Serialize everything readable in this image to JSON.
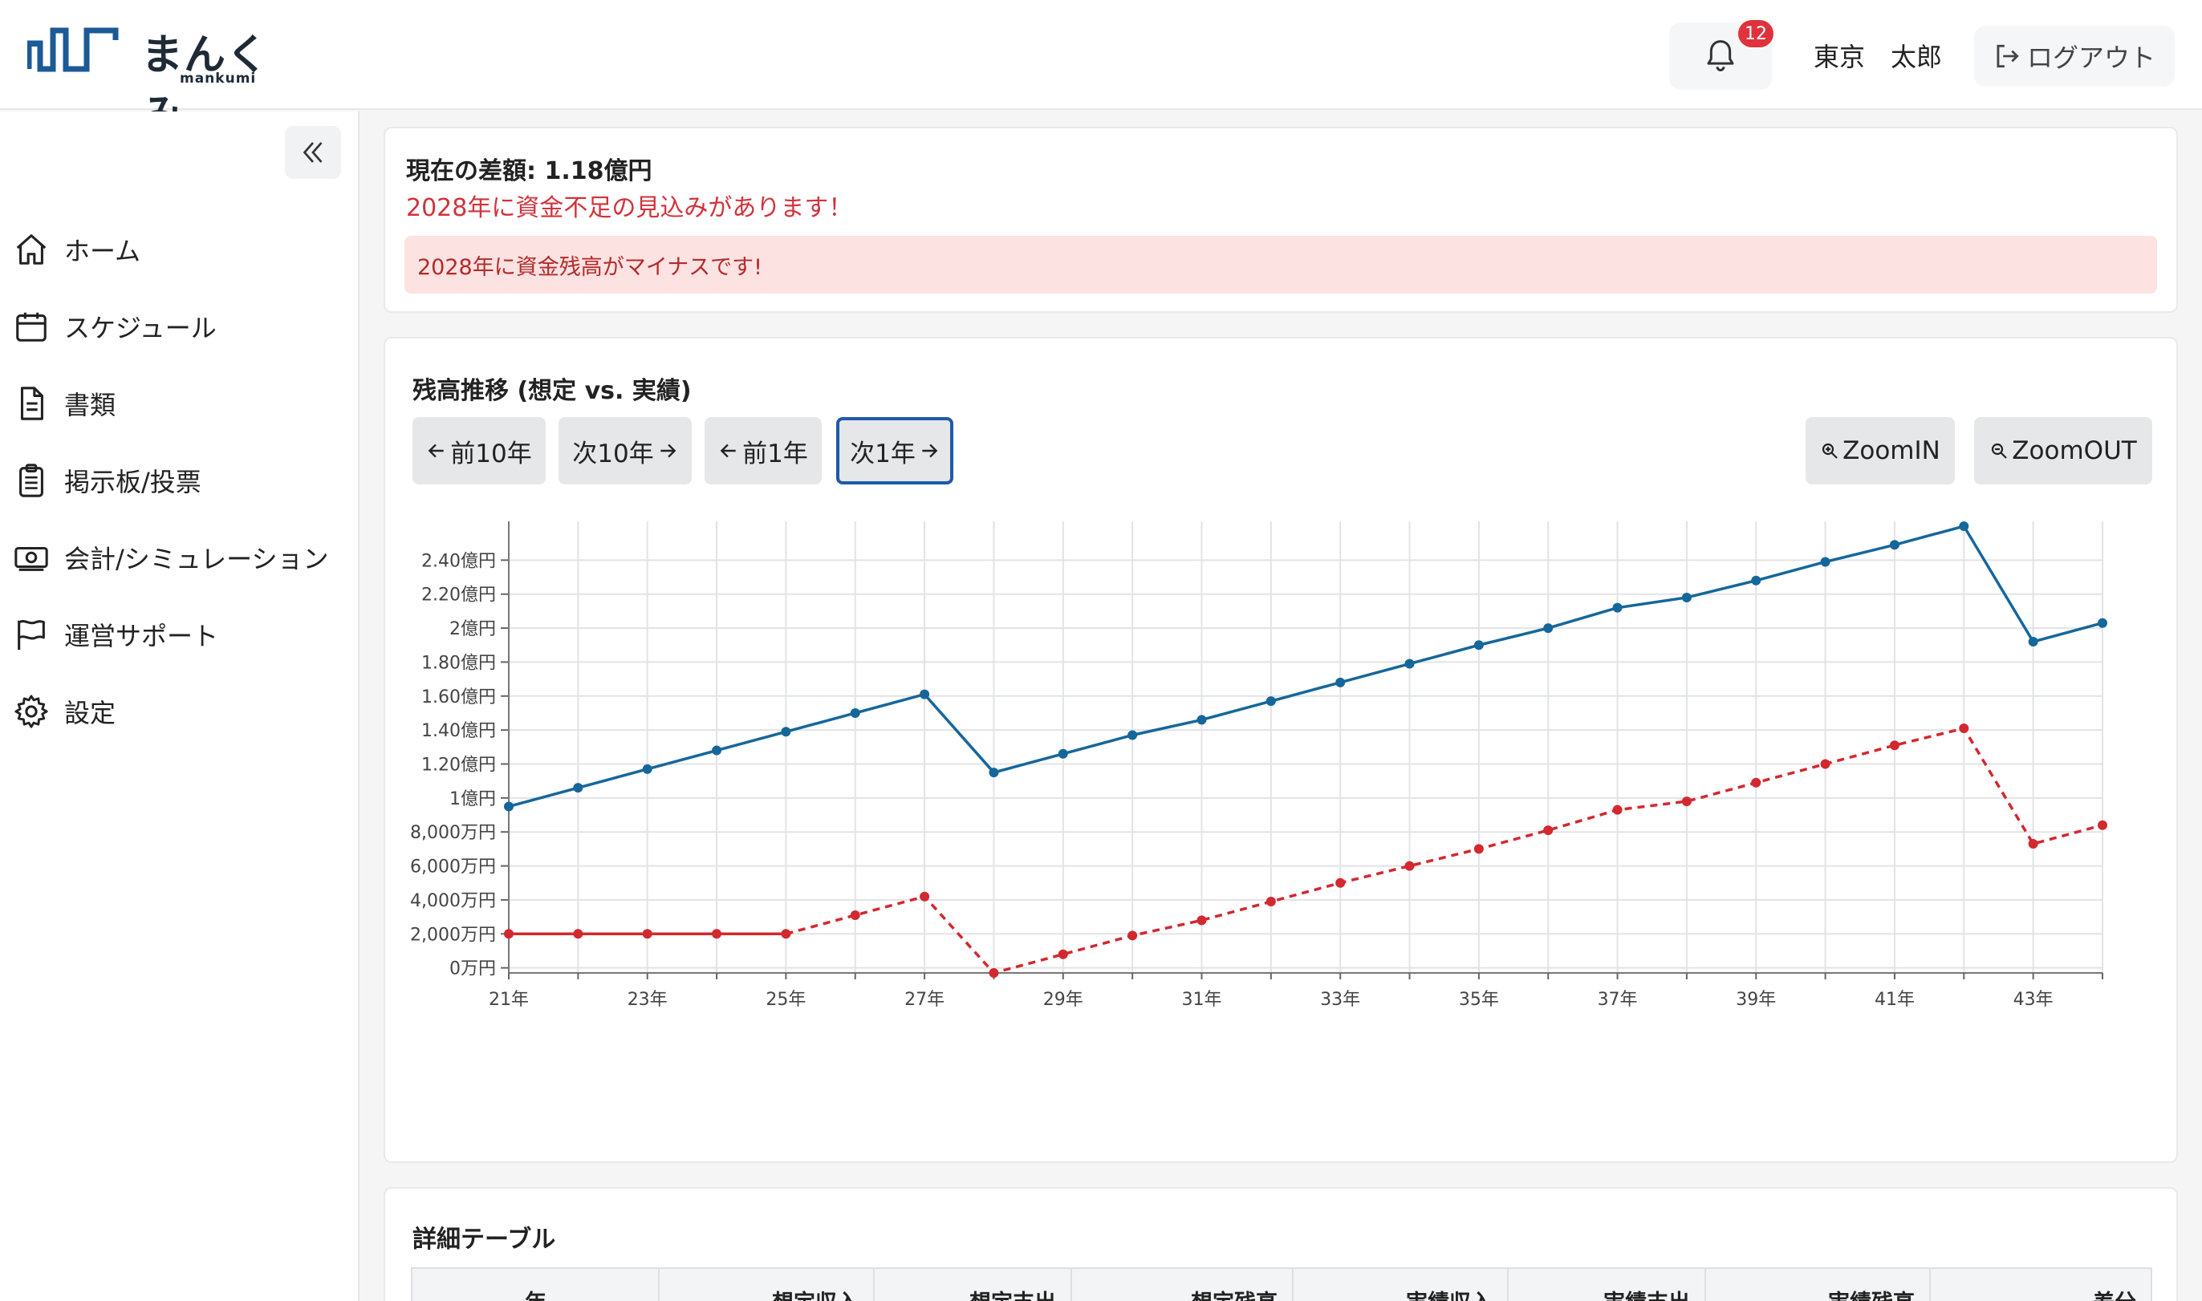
{
  "header": {
    "logo_text": "まんくみ",
    "logo_sub": "mankumi",
    "notification_count": "12",
    "user_name": "東京　太郎",
    "logout_label": "ログアウト"
  },
  "sidebar": {
    "items": [
      {
        "label": "ホーム",
        "icon": "home-icon"
      },
      {
        "label": "スケジュール",
        "icon": "calendar-icon"
      },
      {
        "label": "書類",
        "icon": "document-icon"
      },
      {
        "label": "掲示板/投票",
        "icon": "clipboard-icon"
      },
      {
        "label": "会計/シミュレーション",
        "icon": "money-icon"
      },
      {
        "label": "運営サポート",
        "icon": "flag-icon"
      },
      {
        "label": "設定",
        "icon": "gear-icon"
      }
    ]
  },
  "summary": {
    "diff_label": "現在の差額: 1.18億円",
    "warning": "2028年に資金不足の見込みがあります！",
    "alert": "2028年に資金残高がマイナスです!"
  },
  "chart_panel": {
    "title": "残高推移 (想定 vs. 実績)",
    "buttons": {
      "prev10": "前10年",
      "next10": "次10年",
      "prev1": "前1年",
      "next1": "次1年",
      "zoom_in": "ZoomIN",
      "zoom_out": "ZoomOUT"
    }
  },
  "chart_data": {
    "type": "line",
    "title": "",
    "xlabel": "",
    "ylabel": "",
    "x": [
      "21年",
      "22年",
      "23年",
      "24年",
      "25年",
      "26年",
      "27年",
      "28年",
      "29年",
      "30年",
      "31年",
      "32年",
      "33年",
      "34年",
      "35年",
      "36年",
      "37年",
      "38年",
      "39年",
      "40年",
      "41年",
      "42年",
      "43年",
      "44年"
    ],
    "x_tick_labels": [
      "21年",
      "23年",
      "25年",
      "27年",
      "29年",
      "31年",
      "33年",
      "35年",
      "37年",
      "39年",
      "41年",
      "43年"
    ],
    "y_tick_values": [
      0,
      2000,
      4000,
      6000,
      8000,
      10000,
      12000,
      14000,
      16000,
      18000,
      20000,
      22000,
      24000
    ],
    "y_tick_labels": [
      "0万円",
      "2,000万円",
      "4,000万円",
      "6,000万円",
      "8,000万円",
      "1億円",
      "1.20億円",
      "1.40億円",
      "1.60億円",
      "1.80億円",
      "2億円",
      "2.20億円",
      "2.40億円"
    ],
    "ylim": [
      -300,
      26000
    ],
    "grid": true,
    "series": [
      {
        "color": "#15679b",
        "style": "solid",
        "values": [
          9500,
          10600,
          11700,
          12800,
          13900,
          15000,
          16100,
          11500,
          12600,
          13700,
          14600,
          15700,
          16800,
          17900,
          19000,
          20000,
          21200,
          21800,
          22800,
          23900,
          24900,
          26000,
          19200,
          20300
        ]
      },
      {
        "color": "#d3282f",
        "style": "dashed",
        "values": [
          2000,
          2000,
          2000,
          2000,
          2000,
          3100,
          4200,
          -300,
          800,
          1900,
          2800,
          3900,
          5000,
          6000,
          7000,
          8100,
          9300,
          9800,
          10900,
          12000,
          13100,
          14100,
          7300,
          8400
        ]
      }
    ]
  },
  "table": {
    "title": "詳細テーブル",
    "columns": [
      "年",
      "想定収入",
      "想定支出",
      "想定残高",
      "実績収入",
      "実績支出",
      "実績残高",
      "差分"
    ]
  }
}
